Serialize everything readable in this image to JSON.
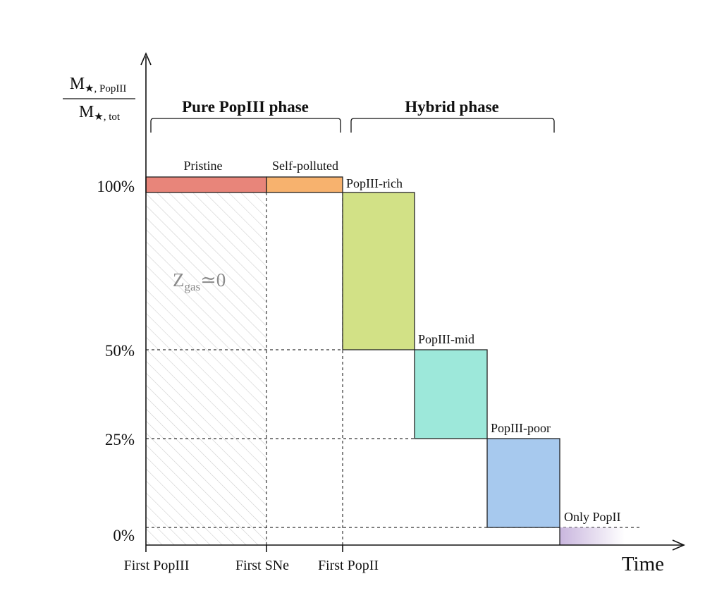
{
  "y_axis_label": {
    "numerator": {
      "main": "M",
      "star": "★",
      "sub": ", PopIII"
    },
    "denominator": {
      "main": "M",
      "star": "★",
      "sub": ", tot"
    }
  },
  "x_axis_label": "Time",
  "y_ticks": [
    "100%",
    "50%",
    "25%",
    "0%"
  ],
  "x_ticks": [
    "First PopIII",
    "First SNe",
    "First PopII"
  ],
  "phases": [
    {
      "label": "Pure PopIII phase"
    },
    {
      "label": "Hybrid phase"
    }
  ],
  "stages": [
    {
      "label": "Pristine",
      "color": "#e8857a"
    },
    {
      "label": "Self-polluted",
      "color": "#f7b26e"
    },
    {
      "label": "PopIII-rich",
      "color": "#d2e186",
      "fraction_top": 1.0,
      "fraction_bottom": 0.5
    },
    {
      "label": "PopIII-mid",
      "color": "#9de8da",
      "fraction_top": 0.5,
      "fraction_bottom": 0.25
    },
    {
      "label": "PopIII-poor",
      "color": "#a7c9ee",
      "fraction_top": 0.25,
      "fraction_bottom": 0.0
    },
    {
      "label": "Only PopII",
      "color": "#c9b6de"
    }
  ],
  "gas_annotation": {
    "main": "Z",
    "sub": "gas",
    "rel": "≃0"
  }
}
